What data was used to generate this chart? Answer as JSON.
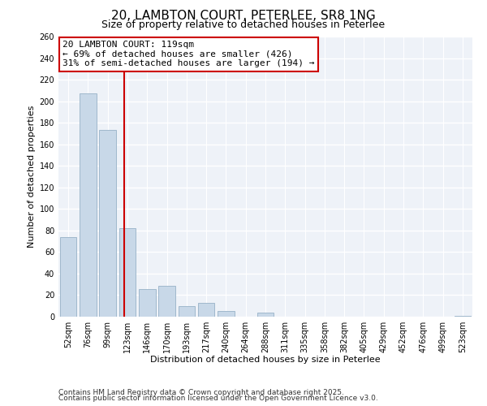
{
  "title": "20, LAMBTON COURT, PETERLEE, SR8 1NG",
  "subtitle": "Size of property relative to detached houses in Peterlee",
  "xlabel": "Distribution of detached houses by size in Peterlee",
  "ylabel": "Number of detached properties",
  "categories": [
    "52sqm",
    "76sqm",
    "99sqm",
    "123sqm",
    "146sqm",
    "170sqm",
    "193sqm",
    "217sqm",
    "240sqm",
    "264sqm",
    "288sqm",
    "311sqm",
    "335sqm",
    "358sqm",
    "382sqm",
    "405sqm",
    "429sqm",
    "452sqm",
    "476sqm",
    "499sqm",
    "523sqm"
  ],
  "values": [
    74,
    207,
    173,
    82,
    26,
    29,
    10,
    13,
    5,
    0,
    4,
    0,
    0,
    0,
    0,
    0,
    0,
    0,
    0,
    0,
    1
  ],
  "bar_color": "#c8d8e8",
  "bar_edge_color": "#a0b8cc",
  "property_line_x": 2.83,
  "property_line_color": "#cc0000",
  "annotation_title": "20 LAMBTON COURT: 119sqm",
  "annotation_line1": "← 69% of detached houses are smaller (426)",
  "annotation_line2": "31% of semi-detached houses are larger (194) →",
  "annotation_box_color": "#ffffff",
  "annotation_box_edge": "#cc0000",
  "ylim": [
    0,
    260
  ],
  "yticks": [
    0,
    20,
    40,
    60,
    80,
    100,
    120,
    140,
    160,
    180,
    200,
    220,
    240,
    260
  ],
  "background_color": "#eef2f8",
  "footer_line1": "Contains HM Land Registry data © Crown copyright and database right 2025.",
  "footer_line2": "Contains public sector information licensed under the Open Government Licence v3.0.",
  "title_fontsize": 11,
  "subtitle_fontsize": 9,
  "axis_label_fontsize": 8,
  "tick_fontsize": 7,
  "annotation_fontsize": 8,
  "footer_fontsize": 6.5
}
